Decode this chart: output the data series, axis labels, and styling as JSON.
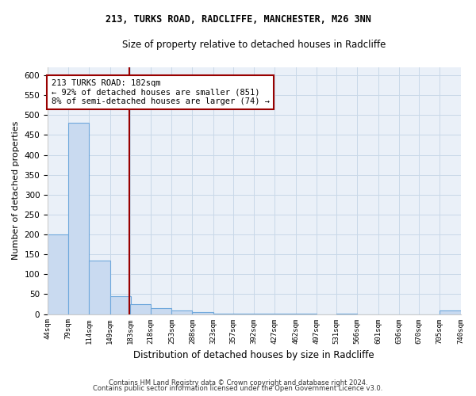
{
  "title1": "213, TURKS ROAD, RADCLIFFE, MANCHESTER, M26 3NN",
  "title2": "Size of property relative to detached houses in Radcliffe",
  "xlabel": "Distribution of detached houses by size in Radcliffe",
  "ylabel": "Number of detached properties",
  "bin_left_edges": [
    44,
    79,
    114,
    149,
    183,
    218,
    253,
    288,
    323,
    357,
    392,
    427,
    462,
    497,
    531,
    566,
    601,
    636,
    670,
    705
  ],
  "bin_width": 35,
  "bar_heights": [
    200,
    480,
    135,
    45,
    25,
    15,
    10,
    5,
    2,
    2,
    2,
    1,
    1,
    0,
    1,
    0,
    0,
    0,
    0,
    10
  ],
  "xtick_labels": [
    "44sqm",
    "79sqm",
    "114sqm",
    "149sqm",
    "183sqm",
    "218sqm",
    "253sqm",
    "288sqm",
    "323sqm",
    "357sqm",
    "392sqm",
    "427sqm",
    "462sqm",
    "497sqm",
    "531sqm",
    "566sqm",
    "601sqm",
    "636sqm",
    "670sqm",
    "705sqm",
    "740sqm"
  ],
  "bar_color": "#c9daf0",
  "bar_edge_color": "#6fa8dc",
  "vline_x": 182,
  "vline_color": "#990000",
  "annotation_text": "213 TURKS ROAD: 182sqm\n← 92% of detached houses are smaller (851)\n8% of semi-detached houses are larger (74) →",
  "annotation_box_facecolor": "#ffffff",
  "annotation_box_edgecolor": "#990000",
  "ylim": [
    0,
    620
  ],
  "yticks": [
    0,
    50,
    100,
    150,
    200,
    250,
    300,
    350,
    400,
    450,
    500,
    550,
    600
  ],
  "footer1": "Contains HM Land Registry data © Crown copyright and database right 2024.",
  "footer2": "Contains public sector information licensed under the Open Government Licence v3.0.",
  "grid_color": "#c8d8e8",
  "bg_color": "#eaf0f8"
}
